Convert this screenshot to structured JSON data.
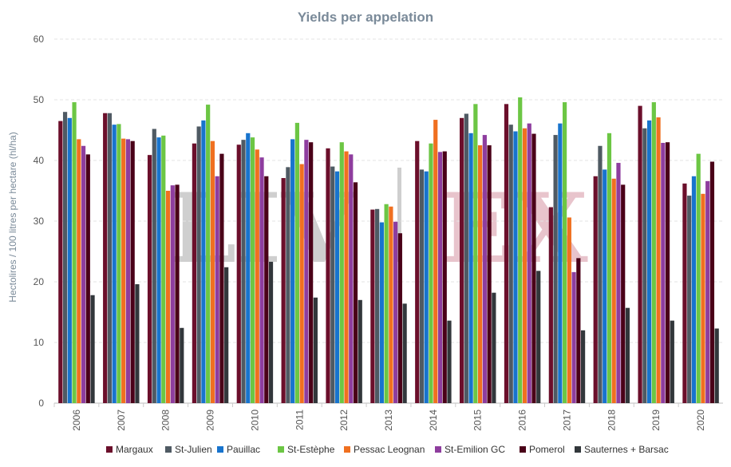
{
  "chart_data": {
    "type": "bar",
    "title": "Yields per appelation",
    "ylabel": "Hectolires / 100 litres per hectare (hl/ha)",
    "xlabel": "",
    "ylim": [
      0,
      60
    ],
    "yticks": [
      0,
      10,
      20,
      30,
      40,
      50,
      60
    ],
    "grid": true,
    "legend_position": "bottom",
    "watermark": {
      "left": "LIV",
      "right": "EX",
      "left_color": "#cfcfcf",
      "right_color": "#e8c4cc"
    },
    "categories": [
      "2006",
      "2007",
      "2008",
      "2009",
      "2010",
      "2011",
      "2012",
      "2013",
      "2014",
      "2015",
      "2016",
      "2017",
      "2018",
      "2019",
      "2020"
    ],
    "series": [
      {
        "name": "Margaux",
        "color": "#6b0f2b",
        "values": [
          46.5,
          47.8,
          40.9,
          42.8,
          42.6,
          37.1,
          42.0,
          31.9,
          43.2,
          47.0,
          49.3,
          32.3,
          37.4,
          49.0,
          36.2
        ]
      },
      {
        "name": "St-Julien",
        "color": "#4f5a63",
        "values": [
          48.0,
          47.8,
          45.2,
          45.6,
          43.4,
          38.9,
          39.0,
          32.0,
          38.5,
          47.7,
          45.9,
          44.2,
          42.4,
          45.3,
          34.2
        ]
      },
      {
        "name": "Pauillac",
        "color": "#1874cd",
        "values": [
          47.0,
          45.9,
          43.8,
          46.6,
          44.5,
          43.5,
          38.2,
          29.8,
          38.2,
          44.5,
          44.8,
          46.1,
          38.5,
          46.6,
          37.4
        ]
      },
      {
        "name": "St-Estèphe",
        "color": "#6cc644",
        "values": [
          49.6,
          46.0,
          44.1,
          49.2,
          43.8,
          46.2,
          43.0,
          32.8,
          42.8,
          49.3,
          50.4,
          49.6,
          44.5,
          49.6,
          41.1
        ]
      },
      {
        "name": "Pessac Leognan",
        "color": "#f07020",
        "values": [
          43.5,
          43.6,
          35.0,
          43.2,
          41.8,
          39.4,
          41.5,
          32.4,
          46.7,
          42.5,
          45.3,
          30.6,
          37.0,
          47.1,
          34.5
        ]
      },
      {
        "name": "St-Emilion GC",
        "color": "#8e3d9e",
        "values": [
          42.4,
          43.5,
          35.9,
          37.4,
          40.5,
          43.4,
          41.0,
          29.9,
          41.4,
          44.2,
          46.1,
          21.6,
          39.6,
          42.9,
          36.6
        ]
      },
      {
        "name": "Pomerol",
        "color": "#4a0018",
        "values": [
          41.0,
          43.2,
          36.0,
          41.1,
          37.4,
          43.0,
          36.4,
          28.0,
          41.5,
          42.5,
          44.4,
          23.9,
          36.0,
          43.0,
          39.8
        ]
      },
      {
        "name": "Sauternes + Barsac",
        "color": "#32373b",
        "values": [
          17.8,
          19.6,
          12.4,
          22.4,
          23.3,
          17.4,
          17.0,
          16.4,
          13.6,
          18.2,
          21.8,
          12.0,
          15.7,
          13.6,
          12.3
        ]
      }
    ]
  }
}
